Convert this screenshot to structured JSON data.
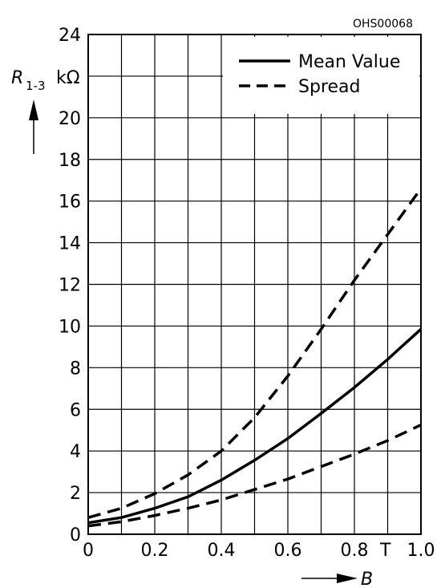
{
  "figure_code": "OHS00068",
  "chart_data": {
    "type": "line",
    "ylabel": {
      "symbol": "R",
      "subscript": "1-3",
      "unit": "kΩ"
    },
    "xlabel": {
      "symbol": "B",
      "unit": "T"
    },
    "xlim": [
      0,
      1.0
    ],
    "ylim": [
      0,
      24
    ],
    "x_ticks": [
      "0",
      "0.2",
      "0.4",
      "0.6",
      "0.8",
      "1.0"
    ],
    "y_ticks": [
      "0",
      "2",
      "4",
      "6",
      "8",
      "10",
      "12",
      "14",
      "16",
      "18",
      "20",
      "24"
    ],
    "grid": true,
    "legend_position": "top-right",
    "series": [
      {
        "name": "Mean Value",
        "style": "solid",
        "x": [
          0,
          0.1,
          0.2,
          0.3,
          0.4,
          0.5,
          0.6,
          0.7,
          0.8,
          0.9,
          1.0
        ],
        "y": [
          0.55,
          0.8,
          1.25,
          1.8,
          2.6,
          3.55,
          4.6,
          5.8,
          7.05,
          8.4,
          9.85
        ]
      },
      {
        "name": "Spread",
        "style": "dashed",
        "x": [
          0,
          0.1,
          0.2,
          0.3,
          0.4,
          0.5,
          0.6,
          0.7,
          0.8,
          0.9,
          1.0
        ],
        "y": [
          0.8,
          1.25,
          1.95,
          2.85,
          4.0,
          5.6,
          7.6,
          9.85,
          12.2,
          14.4,
          16.6
        ]
      },
      {
        "name": "",
        "style": "dashed",
        "x": [
          0,
          0.1,
          0.2,
          0.3,
          0.4,
          0.5,
          0.6,
          0.7,
          0.8,
          0.9,
          1.0
        ],
        "y": [
          0.4,
          0.6,
          0.9,
          1.25,
          1.65,
          2.15,
          2.65,
          3.25,
          3.85,
          4.5,
          5.25
        ]
      }
    ]
  }
}
